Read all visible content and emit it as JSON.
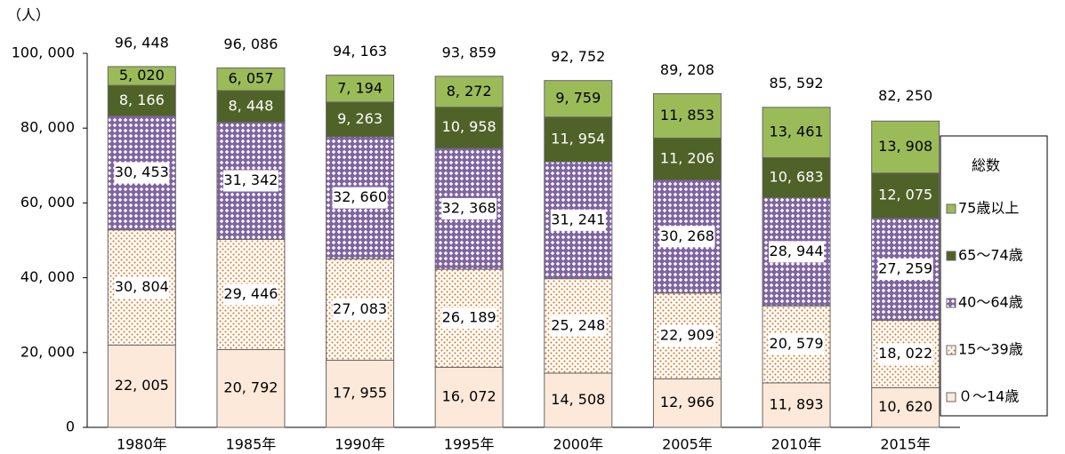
{
  "chart_data": {
    "type": "stacked_bar",
    "y_label": "（人）",
    "categories": [
      "1980年",
      "1985年",
      "1990年",
      "1995年",
      "2000年",
      "2005年",
      "2010年",
      "2015年"
    ],
    "series": [
      {
        "name": "０～14歳",
        "color": "#fde9d9",
        "values": [
          22005,
          20792,
          17955,
          16072,
          14508,
          12966,
          11893,
          10620
        ],
        "value_labels": [
          "22, 005",
          "20, 792",
          "17, 955",
          "16, 072",
          "14, 508",
          "12, 966",
          "11, 893",
          "10, 620"
        ]
      },
      {
        "name": "15～39歳",
        "color": "#e46c0a",
        "values": [
          30804,
          29446,
          27083,
          26189,
          25248,
          22909,
          20579,
          18022
        ],
        "value_labels": [
          "30, 804",
          "29, 446",
          "27, 083",
          "26, 189",
          "25, 248",
          "22, 909",
          "20, 579",
          "18, 022"
        ]
      },
      {
        "name": "40～64歳",
        "color": "#7f64a2",
        "values": [
          30453,
          31342,
          32660,
          32368,
          31241,
          30268,
          28944,
          27259
        ],
        "value_labels": [
          "30, 453",
          "31, 342",
          "32, 660",
          "32, 368",
          "31, 241",
          "30, 268",
          "28, 944",
          "27, 259"
        ]
      },
      {
        "name": "65～74歳",
        "color": "#4f6228",
        "values": [
          8166,
          8448,
          9263,
          10958,
          11954,
          11206,
          10683,
          12075
        ],
        "value_labels": [
          "8, 166",
          "8, 448",
          "9, 263",
          "10, 958",
          "11, 954",
          "11, 206",
          "10, 683",
          "12, 075"
        ]
      },
      {
        "name": "75歳以上",
        "color": "#9bbb59",
        "values": [
          5020,
          6057,
          7194,
          8272,
          9759,
          11853,
          13461,
          13908
        ],
        "value_labels": [
          "5, 020",
          "6, 057",
          "7, 194",
          "8, 272",
          "9, 759",
          "11, 853",
          "13, 461",
          "13, 908"
        ]
      }
    ],
    "totals": [
      96448,
      96086,
      94163,
      93859,
      92752,
      89208,
      85592,
      82250
    ],
    "total_labels": [
      "96, 448",
      "96, 086",
      "94, 163",
      "93, 859",
      "92, 752",
      "89, 208",
      "85, 592",
      "82, 250"
    ],
    "legend_title": "総数",
    "legend": "right",
    "ylim": [
      0,
      100000
    ],
    "yticks": [
      0,
      {
        "value": 20000,
        "label": "20, 000"
      },
      {
        "value": 40000,
        "label": "40, 000"
      },
      {
        "value": 60000,
        "label": "60, 000"
      },
      {
        "value": 80000,
        "label": "80, 000"
      },
      {
        "value": 100000,
        "label": "100, 000"
      }
    ]
  }
}
